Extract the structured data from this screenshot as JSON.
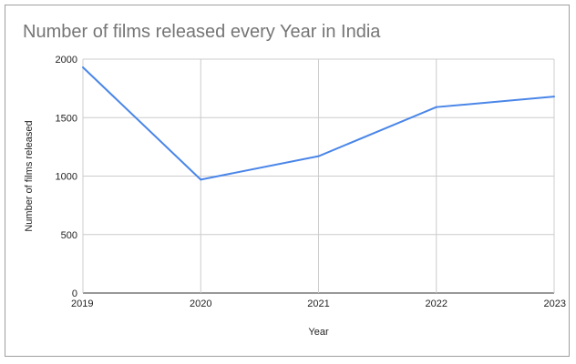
{
  "chart_data": {
    "type": "line",
    "title": "Number of films released every Year in India",
    "xlabel": "Year",
    "ylabel": "Number of films released",
    "categories": [
      "2019",
      "2020",
      "2021",
      "2022",
      "2023"
    ],
    "series": [
      {
        "values": [
          1930,
          970,
          1170,
          1590,
          1680
        ],
        "color": "#4a86e8"
      }
    ],
    "yticks": [
      0,
      500,
      1000,
      1500,
      2000
    ],
    "ylim": [
      0,
      2000
    ],
    "grid": true,
    "legend": "none"
  }
}
